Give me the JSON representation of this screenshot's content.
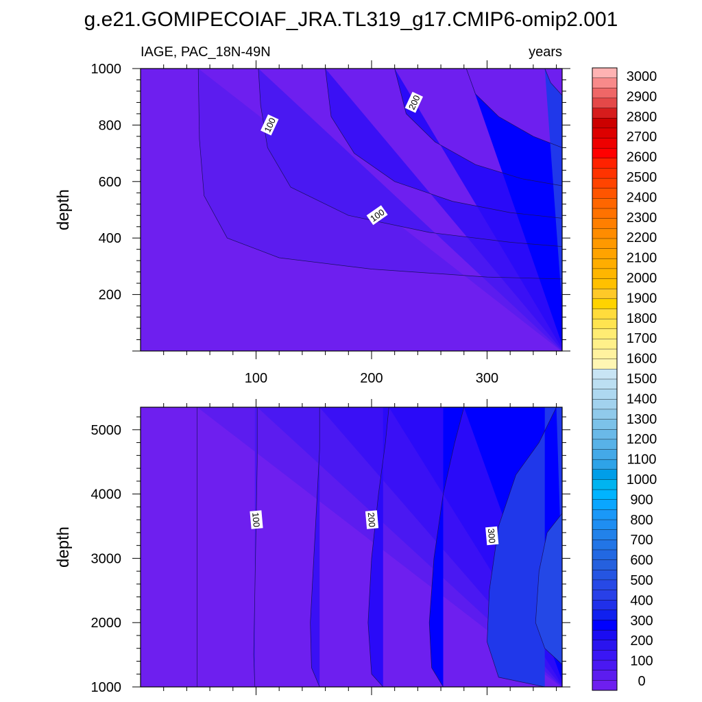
{
  "figure": {
    "title": "g.e21.GOMIPECOIAF_JRA.TL319_g17.CMIP6-omip2.001",
    "left_subtitle": "IAGE, PAC_18N-49N",
    "right_subtitle": "years"
  },
  "chart_data": [
    {
      "type": "heatmap",
      "variable": "IAGE",
      "region": "PAC_18N-49N",
      "units": "years",
      "xlabel": "",
      "ylabel": "depth",
      "xlim": [
        0,
        365
      ],
      "ylim": [
        1000,
        0
      ],
      "x_ticks": [
        "100",
        "200",
        "300"
      ],
      "y_ticks": [
        "200",
        "400",
        "600",
        "800",
        "1000"
      ],
      "contour_levels": [
        50,
        100,
        150,
        200,
        250,
        300
      ],
      "contour_labels": [
        {
          "text": "100",
          "x": 205,
          "y": 480
        },
        {
          "text": "100",
          "x": 112,
          "y": 800
        },
        {
          "text": "200",
          "x": 237,
          "y": 880
        }
      ],
      "contours": [
        {
          "level": 50,
          "points": [
            [
              365,
              255
            ],
            [
              300,
              262
            ],
            [
              200,
              290
            ],
            [
              120,
              330
            ],
            [
              75,
              400
            ],
            [
              55,
              550
            ],
            [
              51,
              750
            ],
            [
              50,
              1000
            ]
          ]
        },
        {
          "level": 100,
          "points": [
            [
              365,
              370
            ],
            [
              320,
              385
            ],
            [
              250,
              420
            ],
            [
              180,
              480
            ],
            [
              130,
              580
            ],
            [
              110,
              720
            ],
            [
              104,
              870
            ],
            [
              102,
              1000
            ]
          ]
        },
        {
          "level": 150,
          "points": [
            [
              365,
              470
            ],
            [
              320,
              490
            ],
            [
              270,
              530
            ],
            [
              220,
              600
            ],
            [
              185,
              700
            ],
            [
              165,
              830
            ],
            [
              160,
              1000
            ]
          ]
        },
        {
          "level": 200,
          "points": [
            [
              365,
              585
            ],
            [
              330,
              610
            ],
            [
              290,
              660
            ],
            [
              255,
              740
            ],
            [
              230,
              840
            ],
            [
              220,
              1000
            ]
          ]
        },
        {
          "level": 250,
          "points": [
            [
              365,
              720
            ],
            [
              340,
              760
            ],
            [
              310,
              830
            ],
            [
              290,
              910
            ],
            [
              282,
              1000
            ]
          ]
        },
        {
          "level": 300,
          "points": [
            [
              365,
              905
            ],
            [
              355,
              950
            ],
            [
              350,
              1000
            ]
          ]
        }
      ]
    },
    {
      "type": "heatmap",
      "variable": "IAGE",
      "region": "PAC_18N-49N",
      "units": "years",
      "xlabel": "",
      "ylabel": "depth",
      "xlim": [
        0,
        365
      ],
      "ylim": [
        5350,
        1000
      ],
      "x_ticks": [],
      "y_ticks": [
        "1000",
        "2000",
        "3000",
        "4000",
        "5000"
      ],
      "contour_levels": [
        50,
        100,
        150,
        200,
        250,
        300,
        350
      ],
      "contour_labels": [
        {
          "text": "100",
          "x": 100,
          "y": 3600
        },
        {
          "text": "200",
          "x": 200,
          "y": 3600
        },
        {
          "text": "300",
          "x": 304,
          "y": 3350
        }
      ],
      "contours": [
        {
          "level": 50,
          "points": [
            [
              49,
              1000
            ],
            [
              49,
              2000
            ],
            [
              49,
              3000
            ],
            [
              49,
              4000
            ],
            [
              49,
              5350
            ]
          ]
        },
        {
          "level": 100,
          "points": [
            [
              99,
              1000
            ],
            [
              98,
              1500
            ],
            [
              99,
              2500
            ],
            [
              100,
              3500
            ],
            [
              101,
              4500
            ],
            [
              101,
              5350
            ]
          ]
        },
        {
          "level": 150,
          "points": [
            [
              155,
              1000
            ],
            [
              148,
              1300
            ],
            [
              147,
              2000
            ],
            [
              150,
              3000
            ],
            [
              153,
              4000
            ],
            [
              155,
              4700
            ],
            [
              155,
              5350
            ]
          ]
        },
        {
          "level": 200,
          "points": [
            [
              210,
              1000
            ],
            [
              200,
              1200
            ],
            [
              197,
              2000
            ],
            [
              200,
              3000
            ],
            [
              206,
              4000
            ],
            [
              212,
              4800
            ],
            [
              215,
              5350
            ]
          ]
        },
        {
          "level": 250,
          "points": [
            [
              262,
              1000
            ],
            [
              252,
              1300
            ],
            [
              250,
              2000
            ],
            [
              254,
              3000
            ],
            [
              262,
              4000
            ],
            [
              272,
              4800
            ],
            [
              280,
              5350
            ]
          ]
        },
        {
          "level": 300,
          "points": [
            [
              350,
              1000
            ],
            [
              310,
              1150
            ],
            [
              300,
              1700
            ],
            [
              302,
              2500
            ],
            [
              310,
              3500
            ],
            [
              325,
              4300
            ],
            [
              345,
              4800
            ],
            [
              360,
              5350
            ]
          ]
        },
        {
          "level": 350,
          "points": [
            [
              365,
              1350
            ],
            [
              350,
              1600
            ],
            [
              342,
              2000
            ],
            [
              345,
              2800
            ],
            [
              352,
              3400
            ],
            [
              365,
              3700
            ]
          ]
        }
      ]
    }
  ],
  "colorbar": {
    "labels": [
      "3000",
      "2900",
      "2800",
      "2700",
      "2600",
      "2500",
      "2400",
      "2300",
      "2200",
      "2100",
      "2000",
      "1900",
      "1800",
      "1700",
      "1600",
      "1500",
      "1400",
      "1300",
      "1200",
      "1100",
      "1000",
      "900",
      "800",
      "700",
      "600",
      "500",
      "400",
      "300",
      "200",
      "100",
      "0"
    ],
    "colors": [
      "#ffb3b3",
      "#f88a8a",
      "#ef6767",
      "#e44848",
      "#d61c1c",
      "#cc0000",
      "#dd0000",
      "#ee0000",
      "#ff0000",
      "#ff2200",
      "#ff3300",
      "#ff4400",
      "#ff5500",
      "#ff6600",
      "#ff7200",
      "#ff7f00",
      "#ff8c00",
      "#ff9900",
      "#ffa300",
      "#ffad00",
      "#ffb600",
      "#ffc000",
      "#ffc928",
      "#ffd300",
      "#ffdc3c",
      "#ffe450",
      "#ffec73",
      "#fff08a",
      "#fff29f",
      "#fff6b3",
      "#c8e4f4",
      "#bcdff2",
      "#aed8f0",
      "#a2d2ee",
      "#90caeb",
      "#7cc2e9",
      "#6ab9e8",
      "#58b2e8",
      "#44a9e8",
      "#2ea3e8",
      "#009ee8",
      "#00b4f0",
      "#00b4ff",
      "#0aa6ff",
      "#1a98f8",
      "#1f8ef2",
      "#2282ea",
      "#2275e6",
      "#2268e2",
      "#2560de",
      "#2555e2",
      "#2749e6",
      "#2840e8",
      "#2030e9",
      "#1020ef",
      "#0000ff",
      "#1a0cf2",
      "#2a14ef",
      "#3a16f5",
      "#4a18f2",
      "#5c1cef",
      "#6e1fef"
    ],
    "boundary_labels": [
      "3000",
      "2900",
      "2800",
      "2700",
      "2600",
      "2500",
      "2400",
      "2300",
      "2200",
      "2100",
      "2000",
      "1900",
      "1800",
      "1700",
      "1600",
      "1500",
      "1400",
      "1300",
      "1200",
      "1100",
      "1000",
      "900",
      "800",
      "700",
      "600",
      "500",
      "400",
      "300",
      "200",
      "100",
      "0"
    ]
  },
  "fill_colors": {
    "below_50": "#6e1fef",
    "50_100": "#5c1cef",
    "100_150": "#4a18f2",
    "150_200": "#3a10f5",
    "200_250": "#2a0af8",
    "250_300": "#0000ff",
    "300_350": "#2038ea",
    "350_400": "#2448e6"
  }
}
